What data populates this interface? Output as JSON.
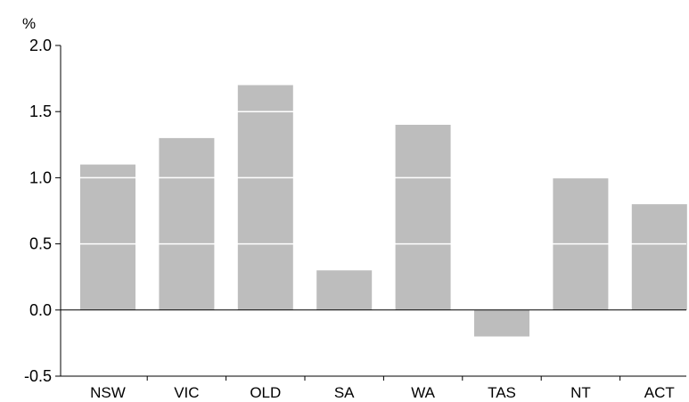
{
  "chart_data": {
    "type": "bar",
    "unit_label": "%",
    "categories": [
      "NSW",
      "VIC",
      "OLD",
      "SA",
      "WA",
      "TAS",
      "NT",
      "ACT"
    ],
    "values": [
      1.1,
      1.3,
      1.7,
      0.3,
      1.4,
      -0.2,
      1.0,
      0.8
    ],
    "ylim": [
      -0.5,
      2.0
    ],
    "yticks": [
      "-0.5",
      "0.0",
      "0.5",
      "1.0",
      "1.5",
      "2.0"
    ],
    "ytick_values": [
      -0.5,
      0.0,
      0.5,
      1.0,
      1.5,
      2.0
    ],
    "gridlines": "white lines across bars at 0.5 intervals",
    "bar_color": "#bdbdbd",
    "gridline_color": "#ffffff",
    "legend": "none"
  }
}
